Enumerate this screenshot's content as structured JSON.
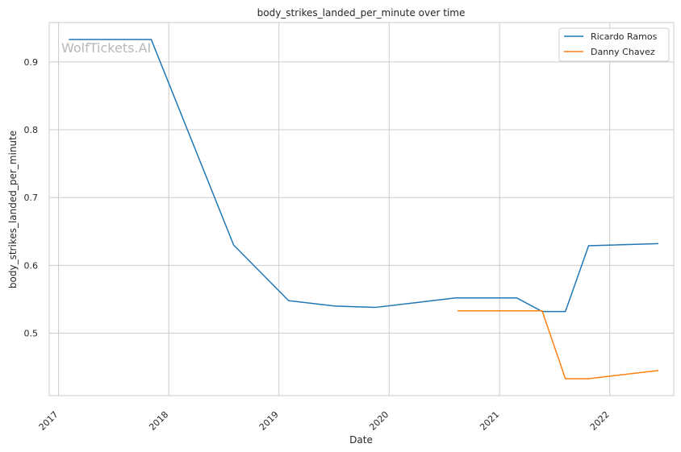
{
  "chart_data": {
    "type": "line",
    "title": "body_strikes_landed_per_minute over time",
    "xlabel": "Date",
    "ylabel": "body_strikes_landed_per_minute",
    "watermark": "WolfTickets.AI",
    "x_ticks": [
      "2017",
      "2018",
      "2019",
      "2020",
      "2021",
      "2022"
    ],
    "y_ticks": [
      "0.5",
      "0.6",
      "0.7",
      "0.8",
      "0.9"
    ],
    "xlim": [
      "2016-12-01",
      "2022-08-01"
    ],
    "ylim": [
      0.408,
      0.958
    ],
    "grid": true,
    "legend_position": "top-right",
    "series": [
      {
        "name": "Ricardo Ramos",
        "color": "#1f77b4",
        "points": [
          {
            "x": "2017-02-04",
            "y": 0.933
          },
          {
            "x": "2017-11-04",
            "y": 0.933
          },
          {
            "x": "2018-08-04",
            "y": 0.63
          },
          {
            "x": "2019-02-02",
            "y": 0.548
          },
          {
            "x": "2019-07-06",
            "y": 0.54
          },
          {
            "x": "2019-11-16",
            "y": 0.538
          },
          {
            "x": "2020-08-08",
            "y": 0.552
          },
          {
            "x": "2021-02-27",
            "y": 0.552
          },
          {
            "x": "2021-05-22",
            "y": 0.532
          },
          {
            "x": "2021-08-07",
            "y": 0.532
          },
          {
            "x": "2021-10-23",
            "y": 0.629
          },
          {
            "x": "2022-06-11",
            "y": 0.632
          }
        ]
      },
      {
        "name": "Danny Chavez",
        "color": "#ff7f0e",
        "points": [
          {
            "x": "2020-08-15",
            "y": 0.533
          },
          {
            "x": "2021-05-22",
            "y": 0.533
          },
          {
            "x": "2021-08-07",
            "y": 0.433
          },
          {
            "x": "2021-10-23",
            "y": 0.433
          },
          {
            "x": "2022-06-11",
            "y": 0.445
          }
        ]
      }
    ]
  }
}
